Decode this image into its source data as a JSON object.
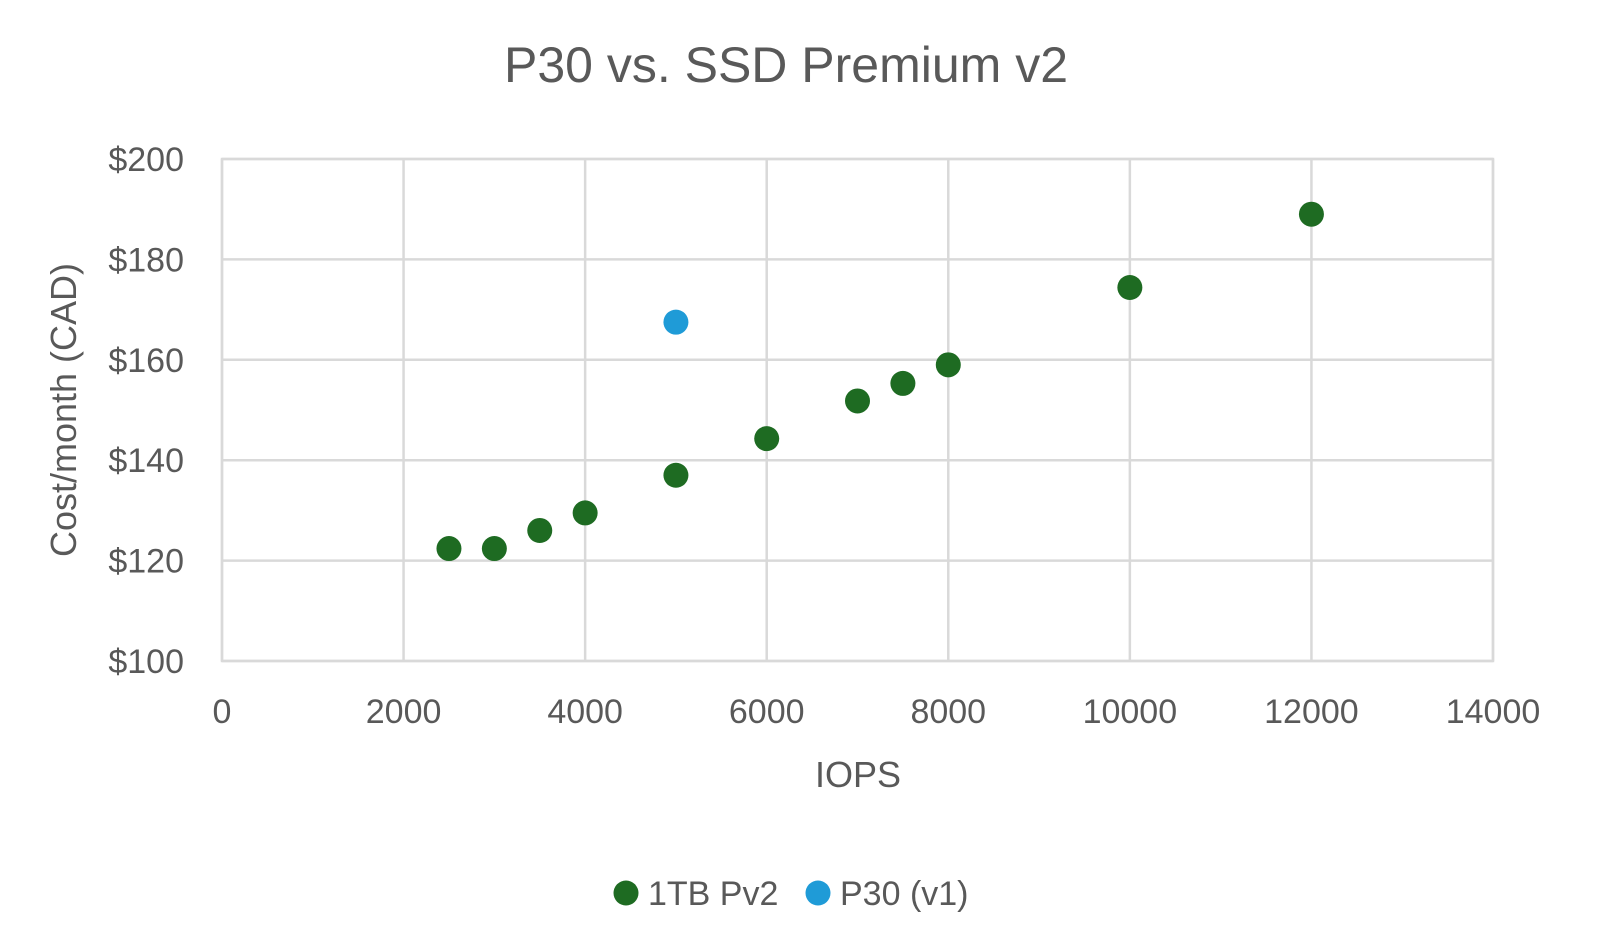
{
  "chart_data": {
    "type": "scatter",
    "title": "P30 vs. SSD Premium v2",
    "xlabel": "IOPS",
    "ylabel": "Cost/month (CAD)",
    "xlim": [
      0,
      14000
    ],
    "ylim": [
      100,
      200
    ],
    "x_ticks": [
      0,
      2000,
      4000,
      6000,
      8000,
      10000,
      12000,
      14000
    ],
    "x_tick_labels": [
      "0",
      "2000",
      "4000",
      "6000",
      "8000",
      "10000",
      "12000",
      "14000"
    ],
    "y_ticks": [
      100,
      120,
      140,
      160,
      180,
      200
    ],
    "y_tick_labels": [
      "$100",
      "$120",
      "$140",
      "$160",
      "$180",
      "$200"
    ],
    "grid": true,
    "legend_position": "bottom",
    "series": [
      {
        "name": "1TB Pv2",
        "color": "#1e6b22",
        "points": [
          {
            "x": 2500,
            "y": 122.4
          },
          {
            "x": 3000,
            "y": 122.4
          },
          {
            "x": 3500,
            "y": 126
          },
          {
            "x": 4000,
            "y": 129.5
          },
          {
            "x": 5000,
            "y": 137
          },
          {
            "x": 6000,
            "y": 144.3
          },
          {
            "x": 7000,
            "y": 151.8
          },
          {
            "x": 7500,
            "y": 155.3
          },
          {
            "x": 8000,
            "y": 159
          },
          {
            "x": 10000,
            "y": 174.4
          },
          {
            "x": 12000,
            "y": 189
          }
        ]
      },
      {
        "name": "P30 (v1)",
        "color": "#1f9bd7",
        "points": [
          {
            "x": 5000,
            "y": 167.5
          }
        ]
      }
    ]
  }
}
